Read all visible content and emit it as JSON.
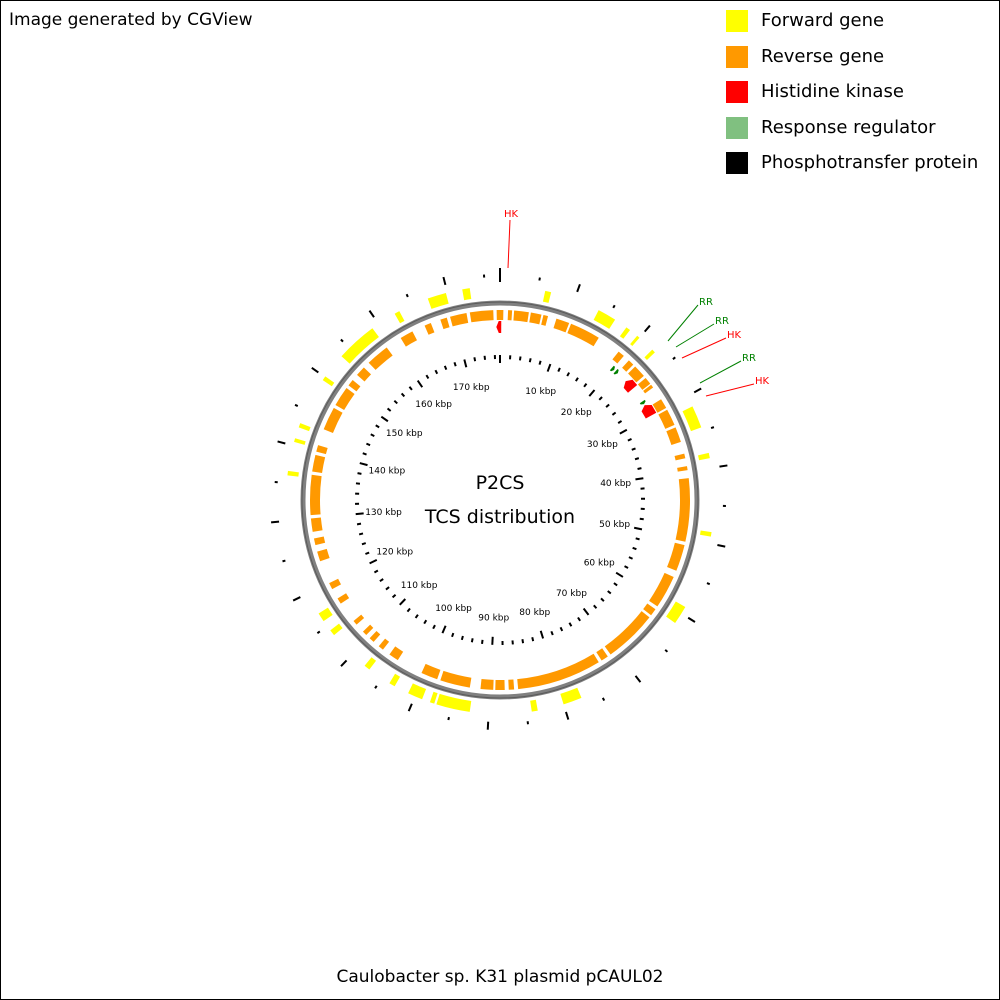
{
  "credit": "Image generated by CGView",
  "title": "P2CS",
  "subtitle": "TCS distribution",
  "caption": "Caulobacter sp. K31 plasmid pCAUL02",
  "colors": {
    "forward": "#ffff00",
    "reverse": "#ff9900",
    "histidine_kinase": "#ff0000",
    "response_regulator": "#80c080",
    "phosphotransfer": "#000000",
    "backbone": "#808080",
    "rr_label": "#008000",
    "hk_label": "#ff0000"
  },
  "legend": [
    {
      "label": "Forward gene",
      "color": "#ffff00"
    },
    {
      "label": "Reverse gene",
      "color": "#ff9900"
    },
    {
      "label": "Histidine kinase",
      "color": "#ff0000"
    },
    {
      "label": "Response regulator",
      "color": "#80c080"
    },
    {
      "label": "Phosphotransfer protein",
      "color": "#000000"
    }
  ],
  "map": {
    "plasmid_length_kbp": 177,
    "scale_labels": [
      "10 kbp",
      "20 kbp",
      "30 kbp",
      "40 kbp",
      "50 kbp",
      "60 kbp",
      "70 kbp",
      "80 kbp",
      "90 kbp",
      "100 kbp",
      "110 kbp",
      "120 kbp",
      "130 kbp",
      "140 kbp",
      "150 kbp",
      "160 kbp",
      "170 kbp"
    ],
    "forward_genes_kbp": [
      [
        6.0,
        6.8
      ],
      [
        13.5,
        16.0
      ],
      [
        17.8,
        18.4
      ],
      [
        19.6,
        20.0
      ],
      [
        22.3,
        22.8
      ],
      [
        31.5,
        34.5
      ],
      [
        38.0,
        38.7
      ],
      [
        48.5,
        49.1
      ],
      [
        59.0,
        61.5
      ],
      [
        77.5,
        80.0
      ],
      [
        83.5,
        84.3
      ],
      [
        92.5,
        97.0
      ],
      [
        97.3,
        97.9
      ],
      [
        99.0,
        101.0
      ],
      [
        103.0,
        103.8
      ],
      [
        107.0,
        107.8
      ],
      [
        113.5,
        114.3
      ],
      [
        115.8,
        117.0
      ],
      [
        136.0,
        136.6
      ],
      [
        140.5,
        141.0
      ],
      [
        142.5,
        143.1
      ],
      [
        149.5,
        150.1
      ],
      [
        153.5,
        159.0
      ],
      [
        162.5,
        163.2
      ],
      [
        167.3,
        169.8
      ],
      [
        172.0,
        173.0
      ]
    ],
    "reverse_genes_kbp": [
      [
        178.2,
        178.8
      ],
      [
        179.1,
        181.3
      ],
      [
        181.6,
        183.2
      ],
      [
        183.5,
        184.2
      ],
      [
        185.5,
        187.5
      ],
      [
        187.8,
        192.4
      ],
      [
        196.0,
        197.0
      ],
      [
        198.0,
        198.9
      ],
      [
        199.3,
        201.2
      ],
      [
        201.6,
        202.7
      ],
      [
        202.9,
        203.4
      ],
      [
        205.5,
        207.0
      ],
      [
        207.3,
        209.8
      ],
      [
        210.2,
        212.5
      ],
      [
        214.3,
        215.0
      ],
      [
        216.2,
        216.8
      ],
      [
        218.0,
        227.5
      ],
      [
        228.0,
        232.0
      ],
      [
        233.0,
        238.0
      ],
      [
        238.5,
        239.6
      ],
      [
        240.0,
        248.0
      ],
      [
        248.5,
        249.6
      ],
      [
        250.1,
        262.8
      ],
      [
        263.4,
        264.2
      ],
      [
        264.8,
        266.2
      ],
      [
        266.5,
        268.4
      ],
      [
        270.0,
        274.5
      ],
      [
        275.0,
        277.5
      ],
      [
        281.5,
        283.0
      ],
      [
        284.2,
        285.0
      ],
      [
        286.0,
        286.8
      ],
      [
        287.5,
        288.2
      ],
      [
        289.6,
        290.3
      ],
      [
        293.5,
        294.4
      ],
      [
        296.0,
        297.0
      ],
      [
        300.5,
        302.0
      ],
      [
        303.0,
        304.0
      ],
      [
        305.0,
        307.0
      ],
      [
        307.5,
        313.5
      ],
      [
        314.0,
        316.5
      ],
      [
        317.0,
        318.0
      ],
      [
        320.5,
        324.0
      ],
      [
        324.5,
        327.5
      ],
      [
        328.0,
        329.0
      ],
      [
        330.0,
        331.5
      ],
      [
        332.5,
        336.0
      ],
      [
        338.5,
        340.5
      ],
      [
        342.5,
        343.5
      ],
      [
        345.0,
        346.0
      ],
      [
        346.5,
        349.0
      ],
      [
        349.5,
        353.0
      ],
      [
        353.5,
        354.5
      ]
    ],
    "tcs_features": [
      {
        "type": "HK",
        "start": 176.4,
        "end": 177.2,
        "strand": "reverse",
        "label": "HK"
      },
      {
        "type": "RR",
        "start": 19.8,
        "end": 20.3,
        "strand": "forward",
        "label": "RR"
      },
      {
        "type": "RR",
        "start": 20.6,
        "end": 21.1,
        "strand": "forward",
        "label": "RR"
      },
      {
        "type": "HK",
        "start": 22.9,
        "end": 24.6,
        "strand": "reverse",
        "label": "HK"
      },
      {
        "type": "RR",
        "start": 27.2,
        "end": 27.7,
        "strand": "forward",
        "label": "RR"
      },
      {
        "type": "HK",
        "start": 27.9,
        "end": 29.9,
        "strand": "reverse",
        "label": "HK"
      }
    ]
  }
}
